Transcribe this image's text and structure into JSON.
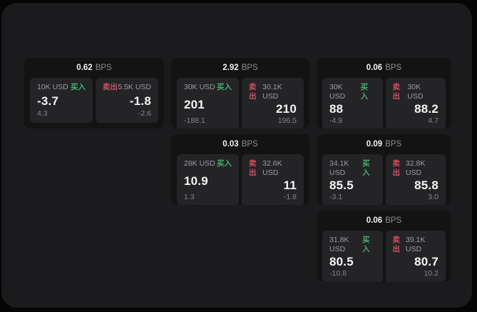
{
  "colors": {
    "page_bg": "#050505",
    "panel_bg": "#1b1b1d",
    "card_bg": "#131314",
    "tile_bg": "#242427",
    "buy_green": "#46af6e",
    "sell_red": "#cd5064",
    "text_primary": "#f5f5f6",
    "text_muted": "#9d9da1",
    "text_dim": "#85858a"
  },
  "labels": {
    "bps_unit": "BPS",
    "buy": "买入",
    "sell": "卖出"
  },
  "cards": [
    {
      "bps": "0.62",
      "buy": {
        "size": "10K USD",
        "price": "-3.7",
        "delta": "4.3"
      },
      "sell": {
        "size": "5.5K USD",
        "price": "-1.8",
        "delta": "-2.6"
      }
    },
    {
      "bps": "2.92",
      "buy": {
        "size": "30K USD",
        "price": "201",
        "delta": "-188.1"
      },
      "sell": {
        "size": "30.1K USD",
        "price": "210",
        "delta": "196.5"
      }
    },
    {
      "bps": "0.06",
      "buy": {
        "size": "30K USD",
        "price": "88",
        "delta": "-4.9"
      },
      "sell": {
        "size": "30K USD",
        "price": "88.2",
        "delta": "4.7"
      }
    },
    {
      "bps": "0.03",
      "buy": {
        "size": "28K USD",
        "price": "10.9",
        "delta": "1.3"
      },
      "sell": {
        "size": "32.6K USD",
        "price": "11",
        "delta": "-1.8"
      }
    },
    {
      "bps": "0.09",
      "buy": {
        "size": "34.1K USD",
        "price": "85.5",
        "delta": "-3.1"
      },
      "sell": {
        "size": "32.8K USD",
        "price": "85.8",
        "delta": "3.0"
      }
    },
    {
      "bps": "0.06",
      "buy": {
        "size": "31.8K USD",
        "price": "80.5",
        "delta": "-10.8"
      },
      "sell": {
        "size": "39.1K USD",
        "price": "80.7",
        "delta": "10.2"
      }
    }
  ]
}
